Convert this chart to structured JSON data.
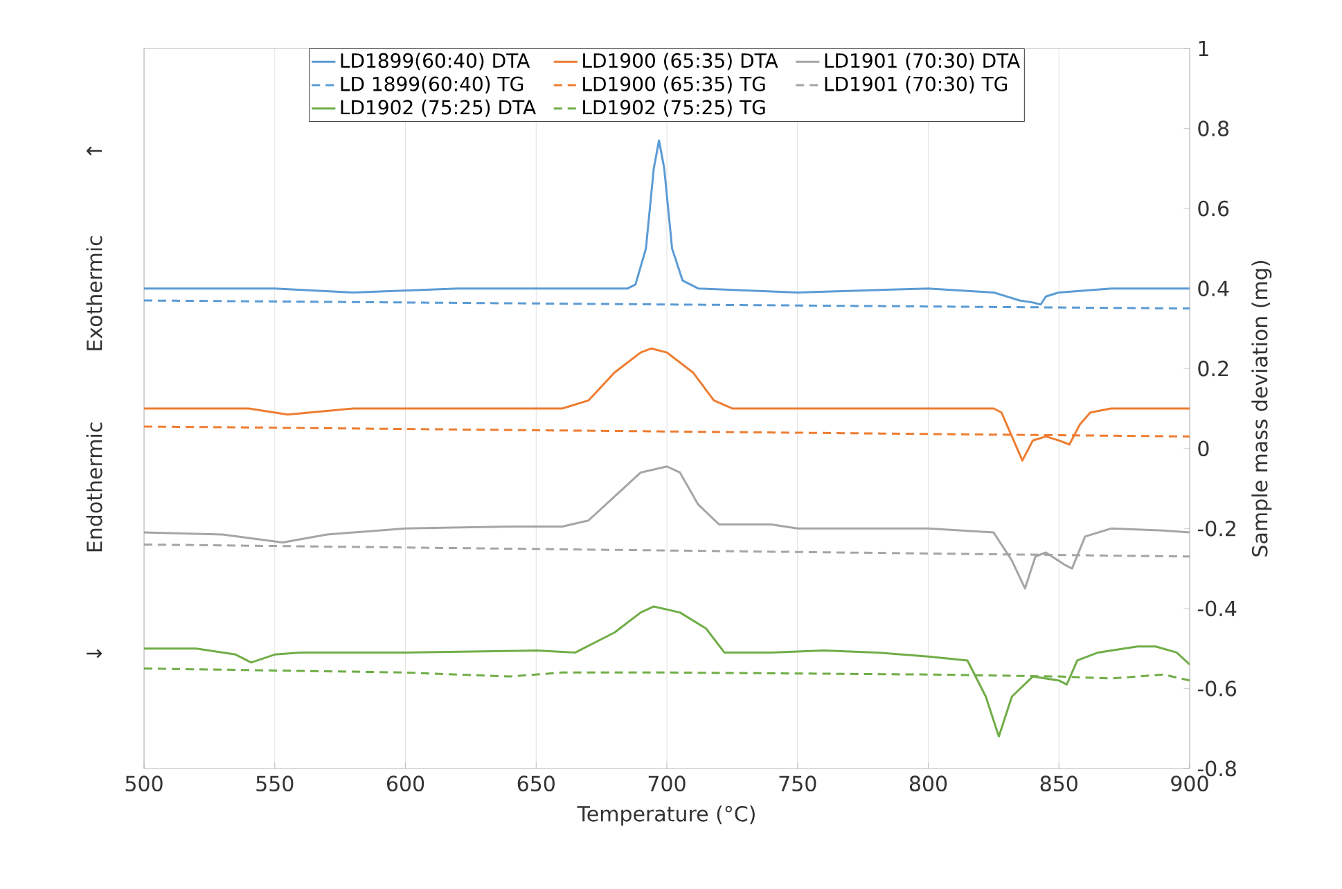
{
  "chart_data": {
    "type": "line",
    "xlabel": "Temperature (°C)",
    "ylabel": "Sample mass deviation (mg)",
    "annotations": [
      "↑",
      "Exothermic",
      "Endothermic",
      "↓"
    ],
    "xlim": [
      500,
      900
    ],
    "xticks": [
      500,
      550,
      600,
      650,
      700,
      750,
      800,
      850,
      900
    ],
    "ylim": [
      -0.8,
      1
    ],
    "yticks": [
      -0.8,
      -0.6,
      -0.4,
      -0.2,
      0,
      0.2,
      0.4,
      0.6,
      0.8,
      1
    ],
    "grid": "x",
    "legend": "top",
    "marker": "none",
    "series": [
      {
        "name": "LD1899(60:40) DTA",
        "color": "#5b9bd5",
        "line_style": "solid",
        "x": [
          500,
          550,
          580,
          620,
          660,
          685,
          688,
          692,
          695,
          697,
          699,
          702,
          706,
          712,
          750,
          800,
          825,
          835,
          840,
          843,
          845,
          850,
          870,
          900
        ],
        "values": [
          0.4,
          0.4,
          0.39,
          0.4,
          0.4,
          0.4,
          0.41,
          0.5,
          0.7,
          0.77,
          0.7,
          0.5,
          0.42,
          0.4,
          0.39,
          0.4,
          0.39,
          0.37,
          0.365,
          0.36,
          0.38,
          0.39,
          0.4,
          0.4
        ]
      },
      {
        "name": "LD1900 (65:35) DTA",
        "color": "#ed7d31",
        "line_style": "solid",
        "x": [
          500,
          540,
          555,
          580,
          660,
          670,
          680,
          690,
          694,
          700,
          710,
          718,
          725,
          800,
          825,
          828,
          832,
          836,
          840,
          845,
          850,
          854,
          858,
          862,
          870,
          900
        ],
        "values": [
          0.1,
          0.1,
          0.085,
          0.1,
          0.1,
          0.12,
          0.19,
          0.24,
          0.25,
          0.24,
          0.19,
          0.12,
          0.1,
          0.1,
          0.1,
          0.09,
          0.03,
          -0.03,
          0.02,
          0.03,
          0.02,
          0.01,
          0.06,
          0.09,
          0.1,
          0.1
        ]
      },
      {
        "name": "LD1901 (70:30) DTA",
        "color": "#a5a5a5",
        "line_style": "solid",
        "x": [
          500,
          530,
          553,
          570,
          600,
          640,
          660,
          670,
          680,
          690,
          700,
          705,
          712,
          720,
          740,
          750,
          800,
          825,
          832,
          837,
          841,
          845,
          852,
          855,
          860,
          870,
          890,
          900
        ],
        "values": [
          -0.21,
          -0.215,
          -0.235,
          -0.215,
          -0.2,
          -0.195,
          -0.195,
          -0.18,
          -0.12,
          -0.06,
          -0.045,
          -0.06,
          -0.14,
          -0.19,
          -0.19,
          -0.2,
          -0.2,
          -0.21,
          -0.28,
          -0.35,
          -0.27,
          -0.26,
          -0.29,
          -0.3,
          -0.22,
          -0.2,
          -0.205,
          -0.21
        ]
      },
      {
        "name": "LD 1899(60:40) TG",
        "color": "#5b9bd5",
        "line_style": "dashed",
        "x": [
          500,
          900
        ],
        "values": [
          0.37,
          0.35
        ]
      },
      {
        "name": "LD1900 (65:35) TG",
        "color": "#ed7d31",
        "line_style": "dashed",
        "x": [
          500,
          900
        ],
        "values": [
          0.055,
          0.03
        ]
      },
      {
        "name": "LD1901 (70:30) TG",
        "color": "#a5a5a5",
        "line_style": "dashed",
        "x": [
          500,
          900
        ],
        "values": [
          -0.24,
          -0.27
        ]
      },
      {
        "name": "LD1902 (75:25) DTA",
        "color": "#70ad47",
        "line_style": "solid",
        "x": [
          500,
          520,
          535,
          541,
          550,
          560,
          600,
          650,
          665,
          680,
          690,
          695,
          705,
          715,
          722,
          740,
          760,
          780,
          800,
          815,
          822,
          827,
          832,
          840,
          850,
          853,
          857,
          865,
          880,
          887,
          895,
          900
        ],
        "values": [
          -0.5,
          -0.5,
          -0.515,
          -0.535,
          -0.515,
          -0.51,
          -0.51,
          -0.505,
          -0.51,
          -0.46,
          -0.41,
          -0.395,
          -0.41,
          -0.45,
          -0.51,
          -0.51,
          -0.505,
          -0.51,
          -0.52,
          -0.53,
          -0.62,
          -0.72,
          -0.62,
          -0.57,
          -0.58,
          -0.59,
          -0.53,
          -0.51,
          -0.495,
          -0.495,
          -0.51,
          -0.54
        ]
      },
      {
        "name": "LD1902 (75:25) TG",
        "color": "#70ad47",
        "line_style": "dashed",
        "x": [
          500,
          550,
          600,
          640,
          660,
          700,
          800,
          850,
          870,
          890,
          900
        ],
        "values": [
          -0.55,
          -0.555,
          -0.56,
          -0.57,
          -0.56,
          -0.56,
          -0.565,
          -0.57,
          -0.575,
          -0.565,
          -0.58
        ]
      }
    ]
  }
}
